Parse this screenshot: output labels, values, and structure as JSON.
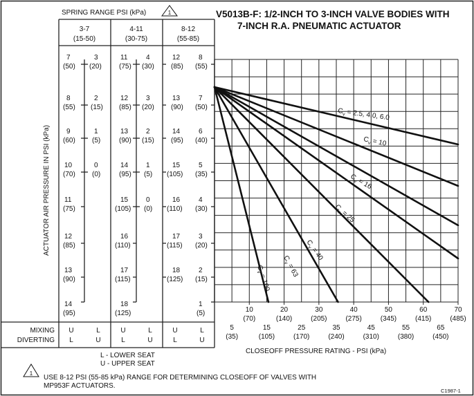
{
  "title": {
    "line1": "V5013B-F: 1/2-INCH TO 3-INCH VALVE BODIES WITH",
    "line2": "7-INCH R.A. PNEUMATIC ACTUATOR"
  },
  "spring_range_label": "SPRING RANGE PSI (kPa)",
  "spring_range_note_number": "1",
  "columns": [
    {
      "header_psi": "3-7",
      "header_kpa": "(15-50)"
    },
    {
      "header_psi": "4-11",
      "header_kpa": "(30-75)"
    },
    {
      "header_psi": "8-12",
      "header_kpa": "(55-85)"
    }
  ],
  "scales": {
    "col1": {
      "left": [
        [
          "7",
          "(50)"
        ],
        [
          "8",
          "(55)"
        ],
        [
          "9",
          "(60)"
        ],
        [
          "10",
          "(70)"
        ],
        [
          "11",
          "(75)"
        ],
        [
          "12",
          "(85)"
        ],
        [
          "13",
          "(90)"
        ],
        [
          "14",
          "(95)"
        ]
      ],
      "right": [
        [
          "3",
          "(20)"
        ],
        [
          "2",
          "(15)"
        ],
        [
          "1",
          "(5)"
        ],
        [
          "0",
          "(0)"
        ]
      ]
    },
    "col2": {
      "left": [
        [
          "11",
          "(75)"
        ],
        [
          "12",
          "(85)"
        ],
        [
          "13",
          "(90)"
        ],
        [
          "14",
          "(95)"
        ],
        [
          "15",
          "(105)"
        ],
        [
          "16",
          "(110)"
        ],
        [
          "17",
          "(115)"
        ],
        [
          "18",
          "(125)"
        ]
      ],
      "right": [
        [
          "4",
          "(30)"
        ],
        [
          "3",
          "(20)"
        ],
        [
          "2",
          "(15)"
        ],
        [
          "1",
          "(5)"
        ],
        [
          "0",
          "(0)"
        ]
      ]
    },
    "col3": {
      "left": [
        [
          "12",
          "(85)"
        ],
        [
          "13",
          "(90)"
        ],
        [
          "14",
          "(95)"
        ],
        [
          "15",
          "(105)"
        ],
        [
          "16",
          "(110)"
        ],
        [
          "17",
          "(115)"
        ],
        [
          "18",
          "(125)"
        ]
      ],
      "right": [
        [
          "8",
          "(55)"
        ],
        [
          "7",
          "(50)"
        ],
        [
          "6",
          "(40)"
        ],
        [
          "5",
          "(35)"
        ],
        [
          "4",
          "(30)"
        ],
        [
          "3",
          "(20)"
        ],
        [
          "2",
          "(15)"
        ],
        [
          "1",
          "(5)"
        ]
      ]
    }
  },
  "mixing_label": "MIXING",
  "diverting_label": "DIVERTING",
  "mixing_row": [
    "U",
    "L",
    "U",
    "L",
    "U",
    "L"
  ],
  "diverting_row": [
    "L",
    "U",
    "L",
    "U",
    "L",
    "U"
  ],
  "seat_legend": {
    "lower": "L - LOWER SEAT",
    "upper": "U - UPPER SEAT"
  },
  "footnote": {
    "number": "1",
    "line1": "USE 8-12 PSI (55-85 kPa) RANGE FOR DETERMINING CLOSEOFF OF VALVES WITH",
    "line2": "MP953F ACTUATORS."
  },
  "figure_id": "C1987-1",
  "chart_data": {
    "type": "line",
    "title": "V5013B-F: 1/2-INCH TO 3-INCH VALVE BODIES WITH 7-INCH R.A. PNEUMATIC ACTUATOR",
    "xlabel": "CLOSEOFF PRESSURE RATING - PSI (kPa)",
    "ylabel": "ACTUATOR AIR PRESSURE IN PSI (kPa)",
    "xlim": [
      0,
      70
    ],
    "x_ticks_upper": [
      [
        "10",
        "(70)"
      ],
      [
        "20",
        "(140)"
      ],
      [
        "30",
        "(205)"
      ],
      [
        "40",
        "(275)"
      ],
      [
        "50",
        "(345)"
      ],
      [
        "60",
        "(415)"
      ],
      [
        "70",
        "(485)"
      ]
    ],
    "x_ticks_lower": [
      [
        "5",
        "(35)"
      ],
      [
        "15",
        "(105)"
      ],
      [
        "25",
        "(170)"
      ],
      [
        "35",
        "(240)"
      ],
      [
        "45",
        "(310)"
      ],
      [
        "55",
        "(380)"
      ],
      [
        "65",
        "(450)"
      ]
    ],
    "series": [
      {
        "name": "Cv = 2.5, 4.0, 6.0",
        "label_main": "C",
        "label_sub": "v",
        "label_rest": " = 2.5, 4.0, 6.0",
        "x": [
          0,
          70
        ],
        "y": [
          8,
          6.3
        ]
      },
      {
        "name": "Cv = 10",
        "label_main": "C",
        "label_sub": "v",
        "label_rest": " = 10",
        "x": [
          0,
          70
        ],
        "y": [
          8,
          4.8
        ]
      },
      {
        "name": "Cv = 16",
        "label_main": "C",
        "label_sub": "v",
        "label_rest": " = 16",
        "x": [
          0,
          70
        ],
        "y": [
          8,
          3.2
        ]
      },
      {
        "name": "Cv = 25",
        "label_main": "C",
        "label_sub": "v",
        "label_rest": " = 25",
        "x": [
          0,
          70
        ],
        "y": [
          8,
          1.8
        ]
      },
      {
        "name": "Cv = 40",
        "label_main": "C",
        "label_sub": "v",
        "label_rest": " = 40",
        "x": [
          0,
          58
        ],
        "y": [
          8,
          1
        ]
      },
      {
        "name": "Cv = 63",
        "label_main": "C",
        "label_sub": "v",
        "label_rest": " = 63",
        "x": [
          0,
          36
        ],
        "y": [
          8,
          1
        ]
      },
      {
        "name": "Cv = 100",
        "label_main": "C",
        "label_sub": "v",
        "label_rest": " = 100",
        "x": [
          0,
          30
        ],
        "y": [
          8,
          1
        ]
      }
    ]
  }
}
